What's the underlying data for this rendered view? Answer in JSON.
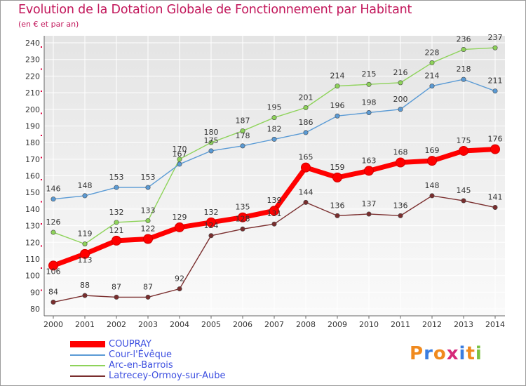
{
  "title": "Evolution de la Dotation Globale de Fonctionnement par Habitant",
  "subtitle": "(en € et par an)",
  "logo": {
    "letters": [
      "P",
      "r",
      "o",
      "x",
      "i",
      "t",
      "i"
    ],
    "colors": [
      "#f08a1e",
      "#3a7de0",
      "#f08a1e",
      "#d62a7a",
      "#3a7de0",
      "#f08a1e",
      "#7ac142"
    ]
  },
  "chart_data": {
    "type": "line",
    "title": "Evolution de la Dotation Globale de Fonctionnement par Habitant",
    "subtitle": "(en € et par an)",
    "x": [
      "2000",
      "2001",
      "2002",
      "2003",
      "2004",
      "2005",
      "2006",
      "2007",
      "2008",
      "2009",
      "2010",
      "2011",
      "2012",
      "2013",
      "2014"
    ],
    "ylim": [
      80,
      240
    ],
    "yticks": [
      80,
      90,
      100,
      110,
      120,
      130,
      140,
      150,
      160,
      170,
      180,
      190,
      200,
      210,
      220,
      230,
      240
    ],
    "grid": true,
    "legend": "bottom-left",
    "series": [
      {
        "name": "COUPRAY",
        "color": "#ff0000",
        "values": [
          106,
          113,
          121,
          122,
          129,
          132,
          135,
          139,
          165,
          159,
          163,
          168,
          169,
          175,
          176
        ]
      },
      {
        "name": "Cour-l'Évêque",
        "color": "#5b9bd5",
        "values": [
          146,
          148,
          153,
          153,
          167,
          175,
          178,
          182,
          186,
          196,
          198,
          200,
          214,
          218,
          211
        ]
      },
      {
        "name": "Arc-en-Barrois",
        "color": "#8ed35a",
        "values": [
          126,
          119,
          132,
          133,
          170,
          180,
          187,
          195,
          201,
          214,
          215,
          216,
          228,
          236,
          237
        ]
      },
      {
        "name": "Latrecey-Ormoy-sur-Aube",
        "color": "#7a2e2e",
        "values": [
          84,
          88,
          87,
          87,
          92,
          124,
          128,
          131,
          144,
          136,
          137,
          136,
          148,
          145,
          141
        ]
      }
    ]
  }
}
